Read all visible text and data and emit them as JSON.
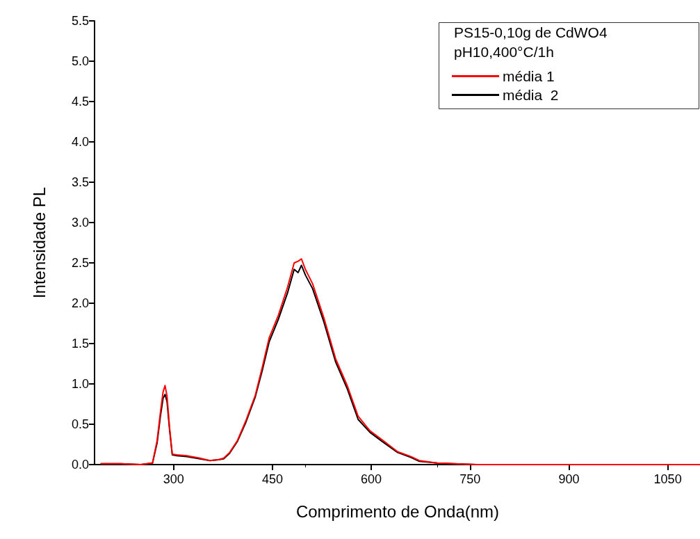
{
  "chart_data": {
    "type": "line",
    "xlabel": "Comprimento de Onda(nm)",
    "ylabel": "Intensidade PL",
    "legend_title": "PS15-0,10g de CdWO4\npH10,400°C/1h",
    "legend": "top right",
    "grid": false,
    "marker": "none",
    "line_style": "solid",
    "xlim": [
      180,
      1100
    ],
    "xticks": [
      300,
      450,
      600,
      750,
      900,
      1050
    ],
    "ylim": [
      0,
      5.5
    ],
    "yticks": [
      {
        "value": 0,
        "label": "0.0"
      },
      0.5,
      {
        "value": 1,
        "label": "1.0"
      },
      1.5,
      {
        "value": 2,
        "label": "2.0"
      },
      2.5,
      {
        "value": 3,
        "label": "3.0"
      },
      3.5,
      {
        "value": 4,
        "label": "4.0"
      },
      4.5,
      {
        "value": 5,
        "label": "5.0"
      },
      5.5
    ],
    "x": [
      190,
      220,
      250,
      268,
      275,
      280,
      284,
      287,
      290,
      294,
      298,
      305,
      320,
      340,
      355,
      368,
      376,
      385,
      397,
      410,
      424,
      435,
      445,
      459,
      473,
      483,
      489,
      494,
      500,
      511,
      528,
      546,
      564,
      580,
      598,
      616,
      640,
      660,
      673,
      700,
      725,
      760,
      800,
      900,
      1000,
      1100
    ],
    "series": [
      {
        "name": "média 1",
        "color": "#ff0000",
        "values": [
          0.01,
          0.01,
          0.0,
          0.02,
          0.3,
          0.65,
          0.9,
          0.98,
          0.85,
          0.45,
          0.13,
          0.12,
          0.11,
          0.08,
          0.05,
          0.06,
          0.08,
          0.15,
          0.3,
          0.55,
          0.86,
          1.22,
          1.57,
          1.85,
          2.2,
          2.5,
          2.52,
          2.55,
          2.42,
          2.24,
          1.82,
          1.31,
          0.97,
          0.6,
          0.42,
          0.31,
          0.16,
          0.1,
          0.05,
          0.02,
          0.01,
          0.0,
          0.0,
          0.0,
          0.0,
          0.0
        ]
      },
      {
        "name": "média  2",
        "color": "#000000",
        "values": [
          0.01,
          0.01,
          0.0,
          0.02,
          0.27,
          0.6,
          0.82,
          0.87,
          0.78,
          0.42,
          0.12,
          0.11,
          0.1,
          0.07,
          0.05,
          0.06,
          0.07,
          0.14,
          0.29,
          0.53,
          0.84,
          1.18,
          1.52,
          1.8,
          2.13,
          2.42,
          2.38,
          2.47,
          2.35,
          2.18,
          1.77,
          1.27,
          0.93,
          0.56,
          0.4,
          0.29,
          0.15,
          0.09,
          0.04,
          0.02,
          0.01,
          0.0,
          0.0,
          0.0,
          0.0,
          0.0
        ]
      }
    ]
  }
}
